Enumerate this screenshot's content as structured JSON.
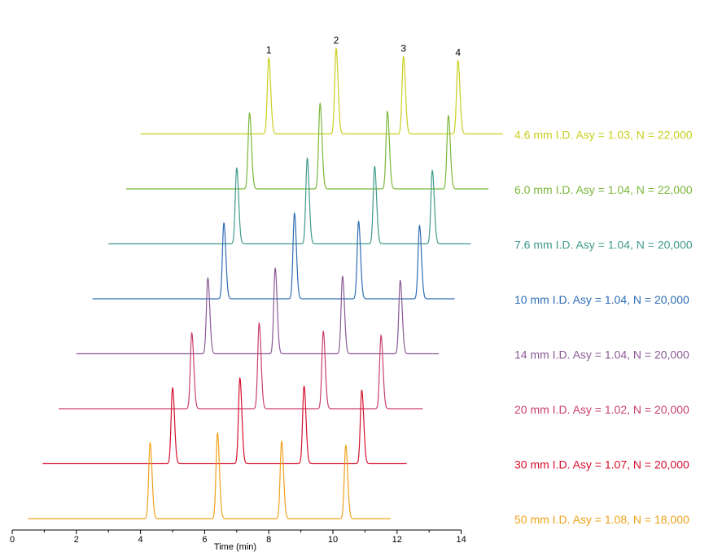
{
  "chart_data": {
    "type": "line",
    "title": "",
    "xlabel": "Time (min)",
    "xlim": [
      0,
      14
    ],
    "xticks": [
      0,
      2,
      4,
      6,
      8,
      10,
      12,
      14
    ],
    "peak_labels": [
      "1",
      "2",
      "3",
      "4"
    ],
    "series": [
      {
        "name": "4.6 mm I.D.  Asy = 1.03, N = 22,000",
        "color": "#c8cf1e",
        "x_start": 4.0,
        "x_end": 15.3,
        "peaks": [
          8.0,
          10.1,
          12.2,
          13.9
        ]
      },
      {
        "name": "6.0 mm I.D.  Asy = 1.04, N = 22,000",
        "color": "#7bb73a",
        "x_start": 3.55,
        "x_end": 14.85,
        "peaks": [
          7.4,
          9.6,
          11.7,
          13.6
        ]
      },
      {
        "name": "7.6 mm I.D. Asy = 1.04, N = 20,000",
        "color": "#3f9a8a",
        "x_start": 3.0,
        "x_end": 14.3,
        "peaks": [
          7.0,
          9.2,
          11.3,
          13.1
        ]
      },
      {
        "name": "10 mm I.D.  Asy = 1.04, N = 20,000",
        "color": "#2f6db5",
        "x_start": 2.5,
        "x_end": 13.8,
        "peaks": [
          6.6,
          8.8,
          10.8,
          12.7
        ]
      },
      {
        "name": "14 mm I.D.  Asy = 1.04, N = 20,000",
        "color": "#8b5a96",
        "x_start": 2.0,
        "x_end": 13.3,
        "peaks": [
          6.1,
          8.2,
          10.3,
          12.1
        ]
      },
      {
        "name": "20 mm I.D.  Asy = 1.02, N = 20,000",
        "color": "#c9406a",
        "x_start": 1.45,
        "x_end": 12.8,
        "peaks": [
          5.6,
          7.7,
          9.7,
          11.5
        ]
      },
      {
        "name": "30 mm I.D.  Asy = 1.07, N = 20,000",
        "color": "#d6102e",
        "x_start": 0.95,
        "x_end": 12.3,
        "peaks": [
          5.0,
          7.1,
          9.1,
          10.9
        ]
      },
      {
        "name": "50 mm I.D.  Asy = 1.08, N = 18,000",
        "color": "#f0a21c",
        "x_start": 0.5,
        "x_end": 11.8,
        "peaks": [
          4.3,
          6.4,
          8.4,
          10.4
        ]
      }
    ]
  }
}
